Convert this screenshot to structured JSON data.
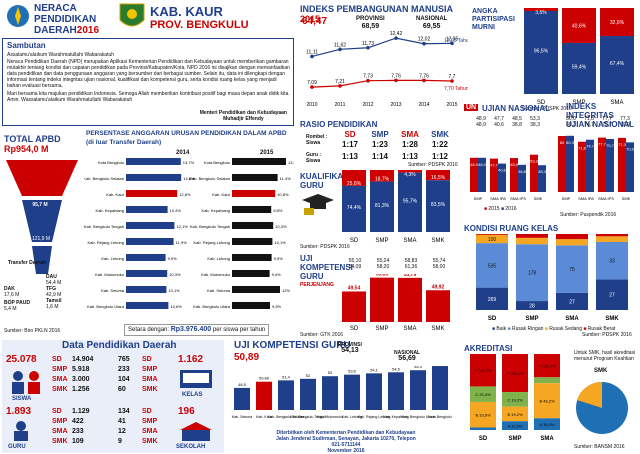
{
  "header": {
    "brand_line1": "NERACA",
    "brand_line2": "PENDIDIKAN",
    "brand_line3": "DAERAH",
    "brand_year": "2016",
    "kab": "KAB. KAUR",
    "prov": "PROV. BENGKULU"
  },
  "sambutan": {
    "title": "Sambutan",
    "p1": "Assalamu'alaikum Warahmatullahi Wabarakatuh",
    "p2": "Neraca Pendidikan Daerah (NPD) merupakan Aplikasi Kementerian Pendidikan dan Kebudayaan untuk memberikan gambaran mutakhir tentang kondisi dan capaian pendidikan pada Provinsi/Kabupaten/Kota. NPD 2016 ini disajikan dengan memanfaatkan data pendidikan dan data penggunaan anggaran yang bersumber dari berbagai sumber. Selain itu, data ini dilengkapi dengan informasi tentang indeks integritas ujian nasional, kualifikasi dan kompetensi guru, serta kondisi ruang kelas yang menjadi bahan evaluasi bersama.",
    "p3": "Mari bersama kita majukan pendidikan Indonesia. Semoga Allah memberikan kontribusi positif bagi masa depan anak didik kita. Amin. Wassalamu'alaikum Warahmatullahi Wabarakatuh",
    "sig1": "Menteri Pendidikan dan Kebudayaan",
    "sig2": "Muhadjir Effendy"
  },
  "ipm": {
    "title": "INDEKS PEMBANGUNAN MANUSIA",
    "year": "2015",
    "kab_val": "64,47",
    "prov_label": "PROVINSI",
    "prov_val": "68,59",
    "nas_label": "NASIONAL",
    "nas_val": "69,55",
    "target1": "12,05 Tahun",
    "target2": "7,70 Tahun",
    "legend1": "Harapan Lama Sekolah",
    "legend2": "Rerata Lama Sekolah",
    "source": "Sumber: BPS 2015",
    "chart_data": {
      "type": "line",
      "x": [
        "2010",
        "2011",
        "2012",
        "2013",
        "2014",
        "2015"
      ],
      "series": [
        {
          "name": "Harapan Lama Sekolah",
          "values": [
            11.11,
            11.62,
            11.73,
            12.42,
            12.02,
            12.05
          ]
        },
        {
          "name": "Rerata Lama Sekolah",
          "values": [
            7.09,
            7.21,
            7.73,
            7.76,
            7.76,
            7.7
          ]
        }
      ]
    }
  },
  "apm": {
    "title1": "ANGKA",
    "title2": "PARTISIPASI",
    "title3": "MURNI",
    "source": "Sumber: PDSPK 2016",
    "chart_data": {
      "type": "bar",
      "categories": [
        "SD",
        "SMP",
        "SMA"
      ],
      "series": [
        {
          "name": "APM",
          "values": [
            96.5,
            59.4,
            67.4
          ]
        },
        {
          "name": "Tidak",
          "values": [
            3.5,
            40.6,
            32.6
          ]
        }
      ]
    }
  },
  "apbd": {
    "title1": "TOTAL APBD",
    "val": "Rp954,0 M",
    "dau_label": "DAU",
    "dau": "54,4 M",
    "tfg_label": "TFG",
    "tfg": "42,9 M",
    "tam_label": "Tamsil",
    "tam": "1,6 M",
    "dak_label": "DAK",
    "dak": "17,6 M",
    "bop_label": "BOP PAUD",
    "bop": "5,4 M",
    "dana_label": "Dana Daerah",
    "dana_val": "95,7 M",
    "transfer_label": "Transfer Daerah",
    "transfer_val": "121,9 M",
    "source": "Sumber: Biro PKLN 2016"
  },
  "anggaran": {
    "title": "PERSENTASE ANGGARAN URUSAN PENDIDIKAN DALAM APBD",
    "subtitle": "(di luar Transfer Daerah)",
    "y2014": "2014",
    "y2015": "2015",
    "setara_label": "Setara dengan:",
    "setara_val": "Rp3.976.400",
    "setara_tail": "per siswa per tahun",
    "chart_data": {
      "type": "bar",
      "categories": [
        "Kota Bengkulu",
        "Kab. Bengkulu Selatan",
        "Kab. Kaur",
        "Kab. Kepahiang",
        "Kab. Bengkulu Tengah",
        "Kab. Rejang Lebong",
        "Kab. Lebong",
        "Kab. Mukomuko",
        "Kab. Seluma",
        "Kab. Bengkulu Utara"
      ],
      "series": [
        {
          "name": "2014",
          "values": [
            13.7,
            13.8,
            12.8,
            10.4,
            12.1,
            11.9,
            9.9,
            10.3,
            10.1,
            10.6
          ]
        },
        {
          "name": "2015",
          "values": [
            13.5,
            11.4,
            10.8,
            9.8,
            10.3,
            10.1,
            9.9,
            9.4,
            12.0,
            9.5
          ]
        }
      ]
    }
  },
  "rasio": {
    "title": "RASIO PENDIDIKAN",
    "rombel": "Rombel : Siswa",
    "guru": "Guru : Siswa",
    "cols": [
      "SD",
      "SMP",
      "SMA",
      "SMK"
    ],
    "r1": [
      "1:17",
      "1:23",
      "1:28",
      "1:22"
    ],
    "r2": [
      "1:13",
      "1:14",
      "1:13",
      "1:12"
    ],
    "source": "Sumber: PDSPK 2016"
  },
  "un": {
    "title": "UJIAN NASIONAL",
    "title_prefix": "UN",
    "source": "Sumber: Puspendik 2016",
    "rows": [
      [
        "48,9",
        "47,7",
        "48,5",
        "53,3"
      ],
      [
        "48,9",
        "40,6",
        "38,8",
        "38,3"
      ]
    ],
    "labels": [
      "SMP",
      "SMA IPA",
      "SMA IPS",
      "SMK"
    ],
    "l2015": "2015",
    "l2016": "2016",
    "chart_data": {
      "type": "bar",
      "categories": [
        "SMP",
        "SMA IPA",
        "SMA IPS",
        "SMK"
      ],
      "series": [
        {
          "name": "2015",
          "values": [
            48.9,
            47.7,
            48.5,
            53.3
          ]
        },
        {
          "name": "2016",
          "values": [
            48.9,
            40.6,
            38.8,
            38.3
          ]
        }
      ]
    }
  },
  "iiun": {
    "title1": "INDEKS INTEGRITAS",
    "title2": "UJIAN NASIONAL",
    "rows": [
      [
        "80,0",
        "71,8",
        "77,7",
        "77,3"
      ],
      [
        "80,3",
        "74,7",
        "75,7",
        "70,9"
      ]
    ],
    "chart_data": {
      "type": "bar",
      "categories": [
        "SMP",
        "SMA IPA",
        "SMA IPS",
        "SMK"
      ],
      "series": [
        {
          "name": "2015",
          "values": [
            80.0,
            71.8,
            77.7,
            77.3
          ]
        },
        {
          "name": "2016",
          "values": [
            80.3,
            74.7,
            75.7,
            70.9
          ]
        }
      ]
    }
  },
  "kualifikasi": {
    "title1": "KUALIFIKASI",
    "title2": "GURU",
    "source": "Sumber: PDSPK 2016",
    "l1": "≥S1",
    "l2": "<S1",
    "chart_data": {
      "type": "bar",
      "categories": [
        "SD",
        "SMP",
        "SMA",
        "SMK"
      ],
      "series": [
        {
          "name": "<S1",
          "values": [
            25.6,
            18.7,
            4.3,
            16.5
          ]
        },
        {
          "name": "≥S1",
          "values": [
            74.4,
            81.3,
            95.7,
            83.5
          ]
        }
      ]
    }
  },
  "ukg": {
    "title1": "UJI",
    "title2": "KOMPETENSI",
    "title3": "GURU",
    "sub": "PERJENJANG",
    "source": "Sumber: GTK 2016",
    "prov": [
      "55,10",
      "55,24",
      "58,83",
      "55,74"
    ],
    "nas": [
      "54,09",
      "58,20",
      "61,36",
      "58,00"
    ],
    "chart_data": {
      "type": "bar",
      "categories": [
        "SD",
        "SMP",
        "SMA",
        "SMK"
      ],
      "values": [
        49.54,
        53.86,
        53.79,
        49.92
      ]
    }
  },
  "ruang": {
    "title": "KONDISI RUANG KELAS",
    "source": "Sumber: PDSPK 2016",
    "legend": [
      "Baik",
      "Rusak Ringan",
      "Rusak Sedang",
      "Rusak Berat"
    ],
    "chart_data": {
      "type": "bar",
      "categories": [
        "SD",
        "SMP",
        "SMA",
        "SMK"
      ],
      "series": [
        {
          "name": "Baik",
          "values": [
            269,
            28,
            27,
            27
          ]
        },
        {
          "name": "Rusak Ringan",
          "values": [
            535,
            178,
            75,
            33
          ]
        },
        {
          "name": "Rusak Sedang",
          "values": [
            100,
            20,
            10,
            5
          ]
        },
        {
          "name": "Rusak Berat",
          "values": [
            10,
            12,
            8,
            2
          ]
        }
      ]
    }
  },
  "data_pend": {
    "title": "Data Pendidikan Daerah",
    "siswa_total": "25.078",
    "siswa_label": "SISWA",
    "siswa": [
      [
        "SD",
        "14.904"
      ],
      [
        "SMP",
        "5.918"
      ],
      [
        "SMA",
        "3.000"
      ],
      [
        "SMK",
        "1.256"
      ]
    ],
    "sekolah_counts": [
      [
        "765",
        "SD"
      ],
      [
        "233",
        "SMP"
      ],
      [
        "104",
        "SMA"
      ],
      [
        "60",
        "SMK"
      ]
    ],
    "kelas_total": "1.162",
    "kelas_label": "KELAS",
    "guru_total": "1.893",
    "guru_label": "GURU",
    "guru": [
      [
        "SD",
        "1.129"
      ],
      [
        "SMP",
        "422"
      ],
      [
        "SMA",
        "233"
      ],
      [
        "SMK",
        "109"
      ]
    ],
    "sek": [
      [
        "134",
        "SD"
      ],
      [
        "41",
        "SMP"
      ],
      [
        "12",
        "SMA"
      ],
      [
        "9",
        "SMK"
      ]
    ],
    "sekolah_total": "196",
    "sekolah_label": "SEKOLAH"
  },
  "ukg_kab": {
    "title": "UJI KOMPETENSI GURU",
    "kab_val": "50,89",
    "prov_label": "PROVINSI",
    "prov_val": "54,13",
    "nas_label": "NASIONAL",
    "nas_val": "56,69",
    "footer1": "Diterbitkan oleh Kementerian Pendidikan dan Kebudayaan",
    "footer2": "Jalan Jenderal Sudirman, Senayan, Jakarta 10270, Telepon 021-5711144",
    "footer3": "November 2016",
    "chart_data": {
      "type": "bar",
      "categories": [
        "Kab. Seluma",
        "Kab. Kaur",
        "Kab. Bengkulu Selatan",
        "Kab. Bengkulu Tengah",
        "Kab. Mukomuko",
        "Kab. Lebong",
        "Kab. Rejang Lebong",
        "Kab. Kepahiang",
        "Kab. Bengkulu Utara",
        "Kota Bengkulu"
      ],
      "values": [
        48.5,
        50.89,
        51.4,
        52.0,
        53.0,
        53.6,
        54.1,
        54.5,
        55.3,
        56.9
      ]
    }
  },
  "akreditasi": {
    "title": "AKREDITASI",
    "note": "Untuk SMK, hasil akreditasi menurut Program Keahlian",
    "smk": "SMK",
    "source": "Sumber: BANSM 2016",
    "chart_data": {
      "type": "bar",
      "categories": [
        "SD",
        "SMP",
        "SMA"
      ],
      "series": [
        {
          "name": "A",
          "values": [
            3.3,
            11.5,
            15.4
          ]
        },
        {
          "name": "B",
          "values": [
            33.6,
            19.2,
            46.2
          ]
        },
        {
          "name": "C",
          "values": [
            20.4,
            19.2,
            7.7
          ]
        },
        {
          "name": "TT",
          "values": [
            42.7,
            50.1,
            30.7
          ]
        }
      ]
    }
  }
}
